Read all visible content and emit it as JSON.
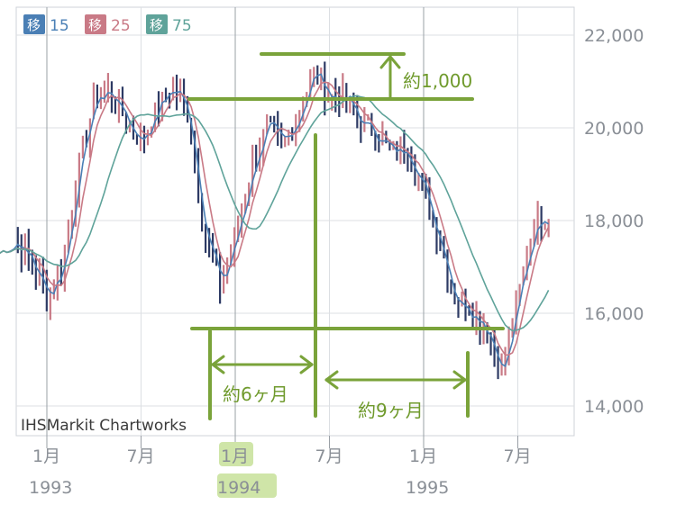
{
  "chart_data": {
    "type": "candlestick",
    "title": "",
    "xlabel": "",
    "ylabel": "",
    "ylim": [
      13400,
      22600
    ],
    "yticks": [
      "22,000",
      "20,000",
      "18,000",
      "16,000",
      "14,000"
    ],
    "ytick_values": [
      22000,
      20000,
      18000,
      16000,
      14000
    ],
    "xticks": [
      {
        "month": "1月",
        "year": "1993",
        "date": "1993-01"
      },
      {
        "month": "7月",
        "year": "",
        "date": "1993-07"
      },
      {
        "month": "1月",
        "year": "1994",
        "date": "1994-01"
      },
      {
        "month": "7月",
        "year": "",
        "date": "1994-07"
      },
      {
        "month": "1月",
        "year": "1995",
        "date": "1995-01"
      },
      {
        "month": "7月",
        "year": "",
        "date": "1995-07"
      }
    ],
    "grid": true,
    "legend": [
      {
        "label": "移",
        "value": "15",
        "color": "#4a7fb5"
      },
      {
        "label": "移",
        "value": "25",
        "color": "#c97a86"
      },
      {
        "label": "移",
        "value": "75",
        "color": "#5fa39a"
      }
    ],
    "legend_position": "top-left",
    "series": [
      {
        "type": "price",
        "color_up": "#c97a86",
        "color_down": "#2d3a64",
        "points": [
          [
            "1992-10",
            17300
          ],
          [
            "1992-11",
            17600
          ],
          [
            "1992-12",
            17100
          ],
          [
            "1993-01",
            16400
          ],
          [
            "1993-02",
            17000
          ],
          [
            "1993-03",
            19100
          ],
          [
            "1993-04",
            20600
          ],
          [
            "1993-05",
            20800
          ],
          [
            "1993-06",
            20200
          ],
          [
            "1993-07",
            19700
          ],
          [
            "1993-08",
            20400
          ],
          [
            "1993-09",
            20900
          ],
          [
            "1993-10",
            20300
          ],
          [
            "1993-11",
            17800
          ],
          [
            "1993-12",
            16600
          ],
          [
            "1994-01",
            17600
          ],
          [
            "1994-02",
            19100
          ],
          [
            "1994-03",
            20000
          ],
          [
            "1994-04",
            19600
          ],
          [
            "1994-05",
            20300
          ],
          [
            "1994-06",
            21200
          ],
          [
            "1994-07",
            20700
          ],
          [
            "1994-08",
            20600
          ],
          [
            "1994-09",
            20100
          ],
          [
            "1994-10",
            19900
          ],
          [
            "1994-11",
            19400
          ],
          [
            "1994-12",
            19600
          ],
          [
            "1995-01",
            18600
          ],
          [
            "1995-02",
            17600
          ],
          [
            "1995-03",
            16300
          ],
          [
            "1995-04",
            16100
          ],
          [
            "1995-05",
            15700
          ],
          [
            "1995-06",
            14700
          ],
          [
            "1995-07",
            16300
          ],
          [
            "1995-08",
            17900
          ],
          [
            "1995-09",
            18200
          ]
        ]
      },
      {
        "type": "ma",
        "name": "15",
        "color": "#4a7fb5"
      },
      {
        "type": "ma",
        "name": "25",
        "color": "#c97a86"
      },
      {
        "type": "ma",
        "name": "75",
        "color": "#5fa39a"
      }
    ],
    "annotations": [
      {
        "text": "約1,000",
        "color": "#6f9a2c"
      },
      {
        "text": "約6ヶ月",
        "color": "#6f9a2c"
      },
      {
        "text": "約9ヶ月",
        "color": "#6f9a2c"
      }
    ],
    "credit": "IHSMarkit Chartworks"
  }
}
